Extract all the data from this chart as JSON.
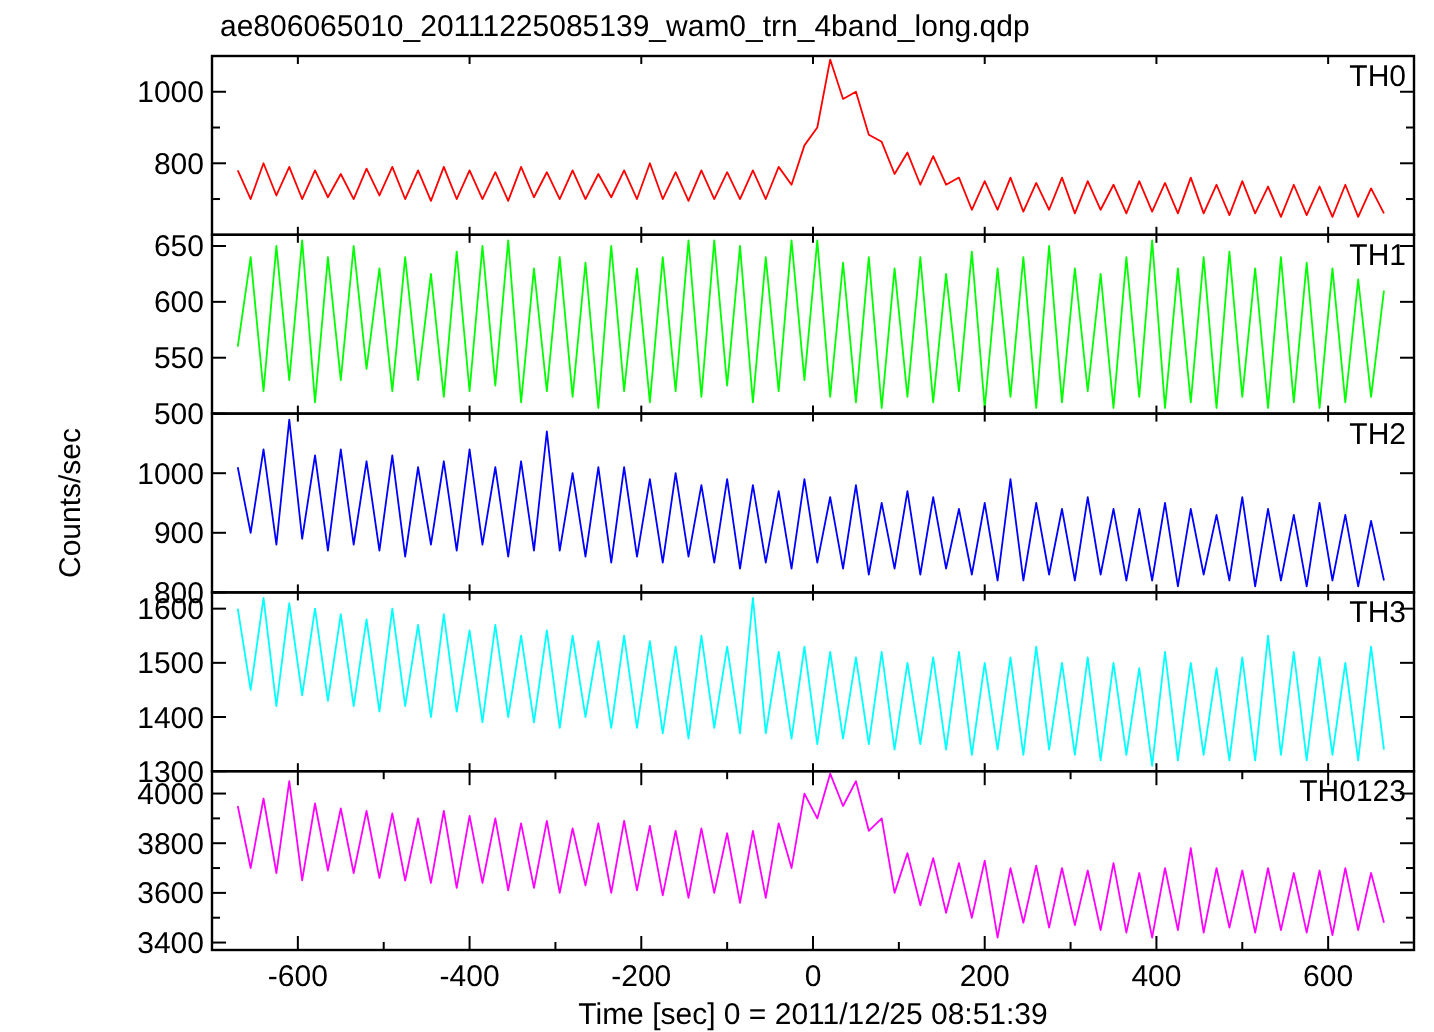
{
  "chart_data": [
    {
      "type": "line",
      "title": "ae806065010_20111225085139_wam0_trn_4band_long.qdp",
      "annotations": [
        "TH0"
      ],
      "tick_labels": "y",
      "xlim": [
        -700,
        700
      ],
      "xticks": [
        {
          "value": -600,
          "label": null
        },
        {
          "value": -400,
          "label": null
        },
        {
          "value": -200,
          "label": null
        },
        {
          "value": 0,
          "label": null
        },
        {
          "value": 200,
          "label": null
        },
        {
          "value": 400,
          "label": null
        },
        {
          "value": 600,
          "label": null
        }
      ],
      "ylim": [
        600,
        1100
      ],
      "yticks": [
        {
          "value": 700,
          "label": null
        },
        800,
        {
          "value": 900,
          "label": null
        },
        1000
      ],
      "x": [
        -670,
        -655,
        -640,
        -625,
        -610,
        -595,
        -580,
        -565,
        -550,
        -535,
        -520,
        -505,
        -490,
        -475,
        -460,
        -445,
        -430,
        -415,
        -400,
        -385,
        -370,
        -355,
        -340,
        -325,
        -310,
        -295,
        -280,
        -265,
        -250,
        -235,
        -220,
        -205,
        -190,
        -175,
        -160,
        -145,
        -130,
        -115,
        -100,
        -85,
        -70,
        -55,
        -40,
        -25,
        -10,
        5,
        20,
        35,
        50,
        65,
        80,
        95,
        110,
        125,
        140,
        155,
        170,
        185,
        200,
        215,
        230,
        245,
        260,
        275,
        290,
        305,
        320,
        335,
        350,
        365,
        380,
        395,
        410,
        425,
        440,
        455,
        470,
        485,
        500,
        515,
        530,
        545,
        560,
        575,
        590,
        605,
        620,
        635,
        650,
        665
      ],
      "series": [
        {
          "color": "#ff0000",
          "values": [
            780,
            700,
            800,
            710,
            790,
            700,
            780,
            705,
            770,
            700,
            785,
            710,
            790,
            700,
            780,
            695,
            790,
            700,
            780,
            700,
            775,
            695,
            790,
            705,
            775,
            700,
            780,
            700,
            770,
            705,
            780,
            700,
            800,
            700,
            775,
            695,
            780,
            700,
            775,
            700,
            780,
            700,
            790,
            740,
            850,
            900,
            1090,
            980,
            1000,
            880,
            860,
            770,
            830,
            740,
            820,
            740,
            760,
            670,
            750,
            670,
            760,
            665,
            745,
            670,
            760,
            660,
            750,
            670,
            740,
            660,
            750,
            665,
            745,
            660,
            760,
            660,
            740,
            655,
            750,
            660,
            735,
            650,
            740,
            655,
            735,
            650,
            740,
            650,
            730,
            660
          ]
        }
      ]
    },
    {
      "type": "line",
      "annotations": [
        "TH1"
      ],
      "tick_labels": "y",
      "xlim": [
        -700,
        700
      ],
      "xticks": [
        {
          "value": -600,
          "label": null
        },
        {
          "value": -400,
          "label": null
        },
        {
          "value": -200,
          "label": null
        },
        {
          "value": 0,
          "label": null
        },
        {
          "value": 200,
          "label": null
        },
        {
          "value": 400,
          "label": null
        },
        {
          "value": 600,
          "label": null
        }
      ],
      "ylim": [
        500,
        660
      ],
      "yticks": [
        500,
        550,
        600,
        650
      ],
      "x": [
        -670,
        -655,
        -640,
        -625,
        -610,
        -595,
        -580,
        -565,
        -550,
        -535,
        -520,
        -505,
        -490,
        -475,
        -460,
        -445,
        -430,
        -415,
        -400,
        -385,
        -370,
        -355,
        -340,
        -325,
        -310,
        -295,
        -280,
        -265,
        -250,
        -235,
        -220,
        -205,
        -190,
        -175,
        -160,
        -145,
        -130,
        -115,
        -100,
        -85,
        -70,
        -55,
        -40,
        -25,
        -10,
        5,
        20,
        35,
        50,
        65,
        80,
        95,
        110,
        125,
        140,
        155,
        170,
        185,
        200,
        215,
        230,
        245,
        260,
        275,
        290,
        305,
        320,
        335,
        350,
        365,
        380,
        395,
        410,
        425,
        440,
        455,
        470,
        485,
        500,
        515,
        530,
        545,
        560,
        575,
        590,
        605,
        620,
        635,
        650,
        665
      ],
      "series": [
        {
          "color": "#00ff00",
          "values": [
            560,
            640,
            520,
            650,
            530,
            655,
            510,
            640,
            530,
            650,
            540,
            630,
            520,
            640,
            530,
            625,
            515,
            645,
            520,
            650,
            525,
            655,
            510,
            630,
            520,
            640,
            515,
            635,
            505,
            650,
            520,
            630,
            510,
            640,
            520,
            655,
            515,
            655,
            525,
            650,
            510,
            640,
            520,
            655,
            530,
            655,
            515,
            635,
            510,
            640,
            505,
            630,
            515,
            640,
            510,
            625,
            520,
            645,
            505,
            630,
            515,
            640,
            505,
            650,
            510,
            630,
            520,
            625,
            505,
            640,
            515,
            655,
            505,
            630,
            510,
            640,
            505,
            645,
            515,
            630,
            505,
            640,
            510,
            635,
            505,
            630,
            510,
            620,
            515,
            610
          ]
        }
      ]
    },
    {
      "type": "line",
      "ylabel": "Counts/sec",
      "annotations": [
        "TH2"
      ],
      "tick_labels": "y",
      "xlim": [
        -700,
        700
      ],
      "xticks": [
        {
          "value": -600,
          "label": null
        },
        {
          "value": -400,
          "label": null
        },
        {
          "value": -200,
          "label": null
        },
        {
          "value": 0,
          "label": null
        },
        {
          "value": 200,
          "label": null
        },
        {
          "value": 400,
          "label": null
        },
        {
          "value": 600,
          "label": null
        }
      ],
      "ylim": [
        800,
        1100
      ],
      "yticks": [
        800,
        900,
        1000
      ],
      "x": [
        -670,
        -655,
        -640,
        -625,
        -610,
        -595,
        -580,
        -565,
        -550,
        -535,
        -520,
        -505,
        -490,
        -475,
        -460,
        -445,
        -430,
        -415,
        -400,
        -385,
        -370,
        -355,
        -340,
        -325,
        -310,
        -295,
        -280,
        -265,
        -250,
        -235,
        -220,
        -205,
        -190,
        -175,
        -160,
        -145,
        -130,
        -115,
        -100,
        -85,
        -70,
        -55,
        -40,
        -25,
        -10,
        5,
        20,
        35,
        50,
        65,
        80,
        95,
        110,
        125,
        140,
        155,
        170,
        185,
        200,
        215,
        230,
        245,
        260,
        275,
        290,
        305,
        320,
        335,
        350,
        365,
        380,
        395,
        410,
        425,
        440,
        455,
        470,
        485,
        500,
        515,
        530,
        545,
        560,
        575,
        590,
        605,
        620,
        635,
        650,
        665
      ],
      "series": [
        {
          "color": "#0000ff",
          "values": [
            1010,
            900,
            1040,
            880,
            1090,
            890,
            1030,
            870,
            1040,
            880,
            1020,
            870,
            1030,
            860,
            1010,
            880,
            1020,
            870,
            1040,
            880,
            1010,
            860,
            1020,
            870,
            1070,
            870,
            1000,
            860,
            1010,
            850,
            1010,
            860,
            990,
            850,
            1000,
            860,
            980,
            850,
            990,
            840,
            980,
            850,
            970,
            840,
            990,
            850,
            960,
            840,
            980,
            830,
            950,
            840,
            970,
            830,
            960,
            840,
            940,
            830,
            950,
            820,
            990,
            820,
            950,
            830,
            940,
            820,
            960,
            830,
            940,
            820,
            940,
            820,
            950,
            810,
            940,
            830,
            930,
            820,
            960,
            810,
            940,
            820,
            930,
            810,
            950,
            820,
            930,
            810,
            920,
            820
          ]
        }
      ]
    },
    {
      "type": "line",
      "annotations": [
        "TH3"
      ],
      "tick_labels": "y",
      "xlim": [
        -700,
        700
      ],
      "xticks": [
        {
          "value": -600,
          "label": null
        },
        {
          "value": -400,
          "label": null
        },
        {
          "value": -200,
          "label": null
        },
        {
          "value": 0,
          "label": null
        },
        {
          "value": 200,
          "label": null
        },
        {
          "value": 400,
          "label": null
        },
        {
          "value": 600,
          "label": null
        }
      ],
      "ylim": [
        1300,
        1630
      ],
      "yticks": [
        1300,
        1400,
        1500,
        1600
      ],
      "x": [
        -670,
        -655,
        -640,
        -625,
        -610,
        -595,
        -580,
        -565,
        -550,
        -535,
        -520,
        -505,
        -490,
        -475,
        -460,
        -445,
        -430,
        -415,
        -400,
        -385,
        -370,
        -355,
        -340,
        -325,
        -310,
        -295,
        -280,
        -265,
        -250,
        -235,
        -220,
        -205,
        -190,
        -175,
        -160,
        -145,
        -130,
        -115,
        -100,
        -85,
        -70,
        -55,
        -40,
        -25,
        -10,
        5,
        20,
        35,
        50,
        65,
        80,
        95,
        110,
        125,
        140,
        155,
        170,
        185,
        200,
        215,
        230,
        245,
        260,
        275,
        290,
        305,
        320,
        335,
        350,
        365,
        380,
        395,
        410,
        425,
        440,
        455,
        470,
        485,
        500,
        515,
        530,
        545,
        560,
        575,
        590,
        605,
        620,
        635,
        650,
        665
      ],
      "series": [
        {
          "color": "#00ffff",
          "values": [
            1600,
            1450,
            1620,
            1420,
            1610,
            1440,
            1600,
            1430,
            1590,
            1420,
            1580,
            1410,
            1600,
            1420,
            1570,
            1400,
            1590,
            1410,
            1560,
            1390,
            1570,
            1400,
            1550,
            1390,
            1560,
            1380,
            1550,
            1400,
            1540,
            1380,
            1550,
            1380,
            1540,
            1370,
            1530,
            1360,
            1550,
            1380,
            1530,
            1370,
            1620,
            1370,
            1520,
            1360,
            1530,
            1350,
            1520,
            1360,
            1510,
            1350,
            1520,
            1340,
            1500,
            1350,
            1510,
            1340,
            1520,
            1330,
            1500,
            1340,
            1510,
            1330,
            1530,
            1340,
            1500,
            1330,
            1510,
            1320,
            1500,
            1330,
            1490,
            1310,
            1520,
            1320,
            1500,
            1330,
            1490,
            1320,
            1510,
            1320,
            1550,
            1330,
            1520,
            1320,
            1510,
            1330,
            1500,
            1320,
            1530,
            1340
          ]
        }
      ]
    },
    {
      "type": "line",
      "xlabel": "Time [sec] 0 = 2011/12/25 08:51:39",
      "annotations": [
        "TH0123"
      ],
      "xlim": [
        -700,
        700
      ],
      "xticks": [
        -600,
        {
          "value": -500,
          "label": null
        },
        -400,
        {
          "value": -300,
          "label": null
        },
        -200,
        {
          "value": -100,
          "label": null
        },
        0,
        {
          "value": 100,
          "label": null
        },
        200,
        {
          "value": 300,
          "label": null
        },
        400,
        {
          "value": 500,
          "label": null
        },
        600
      ],
      "ylim": [
        3370,
        4090
      ],
      "yticks": [
        3400,
        {
          "value": 3500,
          "label": null
        },
        3600,
        {
          "value": 3700,
          "label": null
        },
        3800,
        {
          "value": 3900,
          "label": null
        },
        4000
      ],
      "x": [
        -670,
        -655,
        -640,
        -625,
        -610,
        -595,
        -580,
        -565,
        -550,
        -535,
        -520,
        -505,
        -490,
        -475,
        -460,
        -445,
        -430,
        -415,
        -400,
        -385,
        -370,
        -355,
        -340,
        -325,
        -310,
        -295,
        -280,
        -265,
        -250,
        -235,
        -220,
        -205,
        -190,
        -175,
        -160,
        -145,
        -130,
        -115,
        -100,
        -85,
        -70,
        -55,
        -40,
        -25,
        -10,
        5,
        20,
        35,
        50,
        65,
        80,
        95,
        110,
        125,
        140,
        155,
        170,
        185,
        200,
        215,
        230,
        245,
        260,
        275,
        290,
        305,
        320,
        335,
        350,
        365,
        380,
        395,
        410,
        425,
        440,
        455,
        470,
        485,
        500,
        515,
        530,
        545,
        560,
        575,
        590,
        605,
        620,
        635,
        650,
        665
      ],
      "series": [
        {
          "color": "#ff00ff",
          "values": [
            3950,
            3700,
            3980,
            3680,
            4050,
            3650,
            3960,
            3690,
            3940,
            3680,
            3930,
            3660,
            3920,
            3650,
            3900,
            3640,
            3930,
            3620,
            3910,
            3640,
            3900,
            3610,
            3880,
            3620,
            3890,
            3600,
            3860,
            3630,
            3880,
            3600,
            3890,
            3610,
            3870,
            3590,
            3850,
            3580,
            3860,
            3600,
            3840,
            3560,
            3850,
            3580,
            3880,
            3700,
            4000,
            3900,
            4080,
            3950,
            4050,
            3850,
            3900,
            3600,
            3760,
            3550,
            3740,
            3520,
            3720,
            3500,
            3730,
            3420,
            3700,
            3480,
            3710,
            3460,
            3700,
            3470,
            3690,
            3450,
            3720,
            3440,
            3680,
            3420,
            3700,
            3450,
            3780,
            3440,
            3700,
            3460,
            3690,
            3440,
            3700,
            3450,
            3680,
            3440,
            3690,
            3430,
            3700,
            3450,
            3680,
            3480
          ]
        }
      ]
    }
  ]
}
